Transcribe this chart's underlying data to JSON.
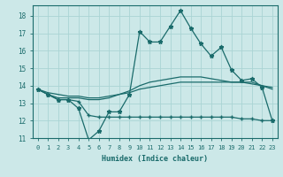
{
  "xlabel": "Humidex (Indice chaleur)",
  "background_color": "#cce8e8",
  "grid_color": "#aad4d4",
  "line_color": "#1a6b6b",
  "x": [
    0,
    1,
    2,
    3,
    4,
    5,
    6,
    7,
    8,
    9,
    10,
    11,
    12,
    13,
    14,
    15,
    16,
    17,
    18,
    19,
    20,
    21,
    22,
    23
  ],
  "line1": [
    13.8,
    13.5,
    13.2,
    13.2,
    12.7,
    10.9,
    11.4,
    12.5,
    12.5,
    13.5,
    17.1,
    16.5,
    16.5,
    17.4,
    18.3,
    17.3,
    16.4,
    15.7,
    16.2,
    14.9,
    14.3,
    14.4,
    13.9,
    12.0
  ],
  "line2": [
    13.8,
    13.5,
    13.3,
    13.3,
    13.3,
    13.2,
    13.2,
    13.3,
    13.5,
    13.7,
    14.0,
    14.2,
    14.3,
    14.4,
    14.5,
    14.5,
    14.5,
    14.4,
    14.3,
    14.2,
    14.2,
    14.2,
    14.0,
    13.8
  ],
  "line3": [
    13.8,
    13.6,
    13.5,
    13.4,
    13.4,
    13.3,
    13.3,
    13.4,
    13.5,
    13.6,
    13.8,
    13.9,
    14.0,
    14.1,
    14.2,
    14.2,
    14.2,
    14.2,
    14.2,
    14.2,
    14.2,
    14.1,
    14.0,
    13.9
  ],
  "line4": [
    13.8,
    13.5,
    13.2,
    13.2,
    13.1,
    12.3,
    12.2,
    12.2,
    12.2,
    12.2,
    12.2,
    12.2,
    12.2,
    12.2,
    12.2,
    12.2,
    12.2,
    12.2,
    12.2,
    12.2,
    12.1,
    12.1,
    12.0,
    12.0
  ],
  "ylim": [
    11,
    18.6
  ],
  "xlim": [
    -0.5,
    23.5
  ],
  "yticks": [
    11,
    12,
    13,
    14,
    15,
    16,
    17,
    18
  ],
  "xticks": [
    0,
    1,
    2,
    3,
    4,
    5,
    6,
    7,
    8,
    9,
    10,
    11,
    12,
    13,
    14,
    15,
    16,
    17,
    18,
    19,
    20,
    21,
    22,
    23
  ]
}
